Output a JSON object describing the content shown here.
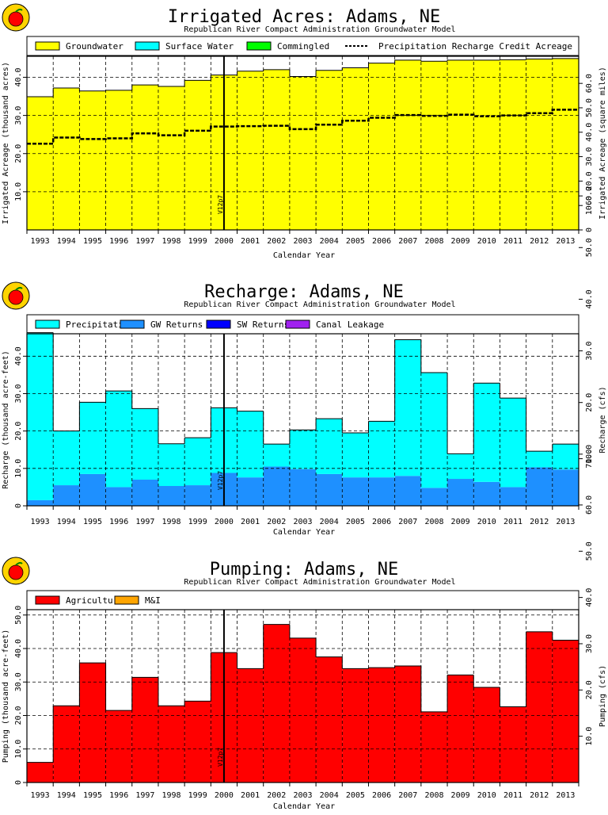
{
  "chart_data": [
    {
      "type": "bar",
      "title": "Irrigated Acres: Adams, NE",
      "subtitle": "Republican River Compact Administration Groundwater Model",
      "xlabel": "Calendar Year",
      "ylabel": "Irrigated Acreage (thousand acres)",
      "ylabel_right": "Irrigated Acreage (square miles)",
      "marker_label": "V12p7",
      "marker_x": 2000.5,
      "categories": [
        "1993",
        "1994",
        "1995",
        "1996",
        "1997",
        "1998",
        "1999",
        "2000",
        "2001",
        "2002",
        "2003",
        "2004",
        "2005",
        "2006",
        "2007",
        "2008",
        "2009",
        "2010",
        "2011",
        "2012",
        "2013"
      ],
      "ylim": [
        0,
        45.5
      ],
      "yticks": [
        10,
        20,
        30,
        40
      ],
      "ytick_labels": [
        "10.0",
        "20.0",
        "30.0",
        "40.0"
      ],
      "y2_ratio": 0.64,
      "y2ticks": [
        0,
        10,
        20,
        30,
        40,
        50,
        60
      ],
      "y2tick_labels": [
        "0",
        "10.0",
        "20.0",
        "30.0",
        "40.0",
        "50.0",
        "60.0"
      ],
      "series": [
        {
          "name": "Groundwater",
          "color": "#ffff00",
          "values": [
            34.9,
            37.2,
            36.4,
            36.6,
            38.0,
            37.6,
            39.2,
            40.6,
            41.6,
            42.0,
            40.2,
            41.8,
            42.5,
            43.7,
            44.5,
            44.2,
            44.5,
            44.5,
            44.6,
            44.8,
            44.9
          ]
        },
        {
          "name": "Surface Water",
          "color": "#00ffff",
          "values": [
            0,
            0,
            0,
            0,
            0,
            0,
            0,
            0,
            0,
            0,
            0,
            0,
            0,
            0,
            0,
            0,
            0,
            0,
            0,
            0,
            0
          ]
        },
        {
          "name": "Commingled",
          "color": "#00ff00",
          "values": [
            0,
            0,
            0,
            0,
            0,
            0,
            0,
            0,
            0,
            0,
            0,
            0,
            0,
            0,
            0,
            0,
            0,
            0,
            0,
            0,
            0
          ]
        }
      ],
      "line_series": {
        "name": "Precipitation Recharge Credit Acreage",
        "values": [
          22.6,
          24.2,
          23.8,
          24.0,
          25.3,
          24.8,
          26.0,
          27.1,
          27.2,
          27.3,
          26.4,
          27.6,
          28.6,
          29.4,
          30.1,
          29.9,
          30.2,
          29.8,
          30.0,
          30.6,
          31.5
        ]
      }
    },
    {
      "type": "bar",
      "title": "Recharge: Adams, NE",
      "subtitle": "Republican River Compact Administration Groundwater Model",
      "xlabel": "Calendar Year",
      "ylabel": "Recharge (thousand acre-feet)",
      "ylabel_right": "Recharge (cfs)",
      "marker_label": "V12p7",
      "marker_x": 2000.5,
      "categories": [
        "1993",
        "1994",
        "1995",
        "1996",
        "1997",
        "1998",
        "1999",
        "2000",
        "2001",
        "2002",
        "2003",
        "2004",
        "2005",
        "2006",
        "2007",
        "2008",
        "2009",
        "2010",
        "2011",
        "2012",
        "2013"
      ],
      "ylim": [
        0,
        46
      ],
      "yticks": [
        0,
        10,
        20,
        30,
        40
      ],
      "ytick_labels": [
        "0",
        "10.0",
        "20.0",
        "30.0",
        "40.0"
      ],
      "y2_ratio": 1.381,
      "y2ticks": [
        10,
        20,
        30,
        40,
        50,
        60
      ],
      "y2tick_labels": [
        "10.0",
        "20.0",
        "30.0",
        "40.0",
        "50.0",
        "60.0"
      ],
      "series": [
        {
          "name": "GW Returns",
          "color": "#1e90ff",
          "values": [
            1.5,
            5.5,
            8.5,
            5.0,
            7.0,
            5.3,
            5.5,
            8.8,
            7.6,
            10.5,
            9.8,
            8.5,
            7.6,
            7.6,
            8.0,
            4.8,
            7.2,
            6.4,
            5.0,
            10.3,
            9.7
          ]
        },
        {
          "name": "Precipitation",
          "color": "#00ffff",
          "values": [
            44.8,
            14.5,
            19.2,
            25.7,
            19.0,
            11.3,
            12.7,
            17.4,
            17.7,
            6.0,
            10.5,
            14.8,
            11.9,
            15.0,
            36.4,
            30.8,
            6.7,
            26.4,
            23.8,
            4.3,
            6.8
          ]
        },
        {
          "name": "SW Returns",
          "color": "#0000ff",
          "values": [
            0,
            0,
            0,
            0,
            0,
            0,
            0,
            0,
            0,
            0,
            0,
            0,
            0,
            0,
            0,
            0,
            0,
            0,
            0,
            0,
            0
          ]
        },
        {
          "name": "Canal Leakage",
          "color": "#a020f0",
          "values": [
            0,
            0,
            0,
            0,
            0,
            0,
            0,
            0,
            0,
            0,
            0,
            0,
            0,
            0,
            0,
            0,
            0,
            0,
            0,
            0,
            0
          ]
        }
      ]
    },
    {
      "type": "bar",
      "title": "Pumping: Adams, NE",
      "subtitle": "Republican River Compact Administration Groundwater Model",
      "xlabel": "Calendar Year",
      "ylabel": "Pumping (thousand acre-feet)",
      "ylabel_right": "Pumping (cfs)",
      "marker_label": "V12p7",
      "marker_x": 2000.5,
      "categories": [
        "1993",
        "1994",
        "1995",
        "1996",
        "1997",
        "1998",
        "1999",
        "2000",
        "2001",
        "2002",
        "2003",
        "2004",
        "2005",
        "2006",
        "2007",
        "2008",
        "2009",
        "2010",
        "2011",
        "2012",
        "2013"
      ],
      "ylim": [
        0,
        51.6
      ],
      "yticks": [
        0,
        10,
        20,
        30,
        40,
        50
      ],
      "ytick_labels": [
        "0",
        "10.0",
        "20.0",
        "30.0",
        "40.0",
        "50.0"
      ],
      "y2_ratio": 1.381,
      "y2ticks": [
        10,
        20,
        30,
        40,
        50,
        60,
        70
      ],
      "y2tick_labels": [
        "10.0",
        "20.0",
        "30.0",
        "40.0",
        "50.0",
        "60.0",
        "70.0"
      ],
      "series": [
        {
          "name": "Agricultural",
          "color": "#ff0000",
          "values": [
            6.0,
            22.9,
            35.7,
            21.5,
            31.4,
            22.9,
            24.3,
            38.8,
            34.0,
            47.2,
            43.1,
            37.5,
            34.0,
            34.3,
            34.8,
            21.1,
            32.1,
            28.4,
            22.6,
            45.0,
            42.5
          ]
        },
        {
          "name": "M&I",
          "color": "#ffa500",
          "values": [
            0,
            0,
            0,
            0,
            0,
            0,
            0,
            0,
            0,
            0,
            0,
            0,
            0,
            0,
            0,
            0,
            0,
            0,
            0,
            0,
            0
          ]
        }
      ]
    }
  ]
}
